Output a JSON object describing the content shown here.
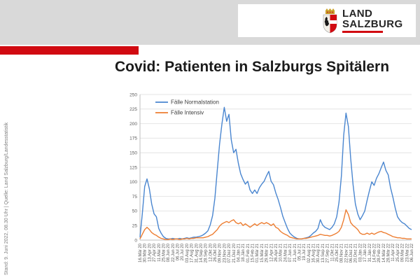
{
  "header": {
    "logo": {
      "line1": "LAND",
      "line2": "SALZBURG"
    },
    "accent_color": "#d10a11",
    "band_color": "#d9d9d9"
  },
  "sidebar": {
    "note": "Stand: 9.  Juni  2022, 08.30 Uhr  |  Quelle: Land Salzburg/Landesstatistik"
  },
  "title": "Covid: Patienten in Salzburgs Spitälern",
  "chart_data": {
    "type": "line",
    "title": "Covid: Patienten in Salzburgs Spitälern",
    "xlabel": "",
    "ylabel": "",
    "ylim": [
      0,
      250
    ],
    "yticks": [
      0,
      25,
      50,
      75,
      100,
      125,
      150,
      175,
      200,
      225,
      250
    ],
    "grid": true,
    "legend_position": "top-left-inside",
    "axis_color": "#bfbfbf",
    "grid_color": "#e4e4e4",
    "tick_label_color": "#595959",
    "legend_text_color": "#404040",
    "x_labels": [
      "16.Mär 20",
      "30.Mär 20",
      "13.Apr 20",
      "27.Apr 20",
      "11.Mai 20",
      "25.Mai 20",
      "08.Jun 20",
      "22.Jun 20",
      "06.Jul 20",
      "20.Jul 20",
      "03.Aug 20",
      "17.Aug 20",
      "31.Aug 20",
      "14.Sep 20",
      "28.Sep 20",
      "12.Okt 20",
      "26.Okt 20",
      "09.Nov 20",
      "23.Nov 20",
      "07.Dez 20",
      "21.Dez 20",
      "04.Jän 21",
      "18.Jän 21",
      "01.Feb 21",
      "15.Feb 21",
      "01.Mär 21",
      "15.Mär 21",
      "29.Mär 21",
      "12.Apr 21",
      "26.Apr 21",
      "10.Mai 21",
      "24.Mai 21",
      "07.Jun 21",
      "21.Jun 21",
      "05.Jul 21",
      "19.Jul 21",
      "02.Aug 21",
      "16.Aug 21",
      "30.Aug 21",
      "13.Sep 21",
      "27.Sep 21",
      "11.Okt 21",
      "25.Okt 21",
      "08.Nov 21",
      "22.Nov 21",
      "06.Dez 21",
      "20.Dez 21",
      "03.Jän 22",
      "17.Jän 22",
      "31.Jän 22",
      "14.Feb 22",
      "28.Feb 22",
      "14.Mär 22",
      "28.Mär 22",
      "11.Apr 22",
      "25.Apr 22",
      "09.Mai 22",
      "23.Mai 22",
      "06.Jun 22"
    ],
    "x_unit": "weekly values from 16.Mär 20 to 06.Jun 22",
    "series": [
      {
        "name": "Fälle Normalstation",
        "color": "#4a86d0",
        "values": [
          5,
          45,
          92,
          105,
          88,
          62,
          45,
          40,
          20,
          12,
          6,
          3,
          2,
          2,
          3,
          2,
          2,
          3,
          2,
          3,
          4,
          3,
          4,
          5,
          5,
          6,
          7,
          9,
          12,
          16,
          26,
          42,
          72,
          120,
          165,
          200,
          228,
          204,
          216,
          172,
          150,
          156,
          132,
          114,
          104,
          96,
          101,
          86,
          80,
          86,
          80,
          90,
          96,
          101,
          110,
          118,
          101,
          95,
          81,
          70,
          56,
          41,
          30,
          20,
          12,
          8,
          5,
          3,
          2,
          2,
          3,
          4,
          5,
          8,
          12,
          15,
          20,
          35,
          26,
          22,
          20,
          18,
          22,
          28,
          40,
          65,
          110,
          180,
          218,
          195,
          140,
          95,
          62,
          45,
          35,
          42,
          50,
          68,
          85,
          100,
          94,
          106,
          114,
          124,
          134,
          120,
          112,
          90,
          74,
          55,
          40,
          34,
          30,
          28,
          24,
          20,
          18
        ]
      },
      {
        "name": "Fälle Intensiv",
        "color": "#ed7d31",
        "values": [
          2,
          10,
          18,
          22,
          18,
          13,
          10,
          8,
          5,
          3,
          2,
          1,
          1,
          2,
          1,
          2,
          2,
          1,
          2,
          2,
          3,
          2,
          3,
          3,
          4,
          4,
          4,
          4,
          5,
          6,
          8,
          10,
          14,
          18,
          24,
          28,
          30,
          32,
          30,
          33,
          35,
          30,
          28,
          30,
          25,
          28,
          25,
          22,
          25,
          28,
          25,
          28,
          30,
          28,
          30,
          28,
          25,
          28,
          22,
          20,
          15,
          12,
          10,
          8,
          5,
          4,
          3,
          2,
          2,
          2,
          3,
          3,
          4,
          5,
          6,
          7,
          8,
          10,
          9,
          8,
          8,
          7,
          8,
          10,
          12,
          15,
          22,
          35,
          52,
          44,
          30,
          25,
          22,
          18,
          12,
          10,
          10,
          12,
          10,
          12,
          10,
          12,
          14,
          15,
          13,
          12,
          10,
          8,
          6,
          5,
          4,
          4,
          3,
          3,
          2,
          2,
          2
        ]
      }
    ]
  }
}
